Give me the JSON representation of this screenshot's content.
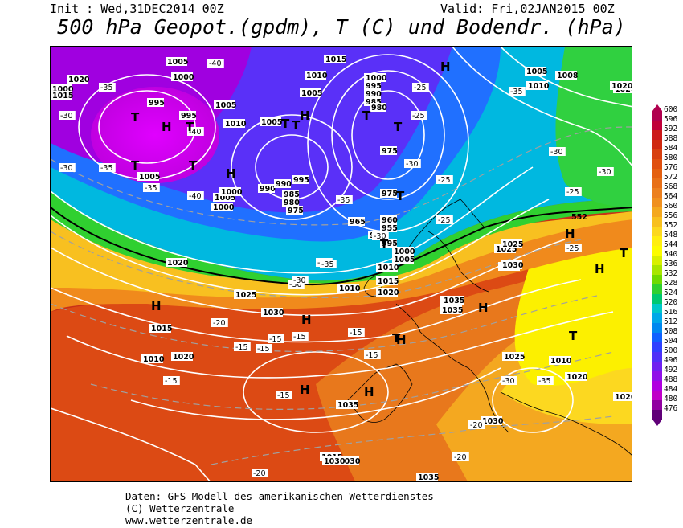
{
  "header": {
    "init": "Init : Wed,31DEC2014 00Z",
    "valid": "Valid: Fri,02JAN2015 00Z",
    "title": "500 hPa Geopot.(gpdm), T (C) und Bodendr. (hPa)"
  },
  "footer": {
    "line1": "Daten: GFS-Modell des amerikanischen Wetterdienstes",
    "line2": "(C) Wetterzentrale",
    "line3": "www.wetterzentrale.de"
  },
  "legend": {
    "levels": [
      "600",
      "596",
      "592",
      "588",
      "584",
      "580",
      "576",
      "572",
      "568",
      "564",
      "560",
      "556",
      "552",
      "548",
      "544",
      "540",
      "536",
      "532",
      "528",
      "524",
      "520",
      "516",
      "512",
      "508",
      "504",
      "500",
      "496",
      "492",
      "488",
      "484",
      "480",
      "476"
    ],
    "colors": [
      "#b0004f",
      "#c0003a",
      "#cc1a1a",
      "#d02a10",
      "#d84010",
      "#e05010",
      "#e46010",
      "#e87018",
      "#ec8020",
      "#f09020",
      "#f4a820",
      "#f8c020",
      "#fcd820",
      "#ffee10",
      "#fcfc00",
      "#d8f000",
      "#a8e600",
      "#70da00",
      "#30d030",
      "#00c870",
      "#00c8c8",
      "#00a8e8",
      "#0088f0",
      "#1060ff",
      "#3040ff",
      "#5030f8",
      "#7020f0",
      "#9010e8",
      "#b000e0",
      "#c000c8",
      "#9000a0",
      "#600078"
    ]
  },
  "map_labels": {
    "pressure": [
      "1020",
      "1005",
      "1000",
      "995",
      "995",
      "1005",
      "1010",
      "1015",
      "1000",
      "995",
      "990",
      "985",
      "980",
      "975",
      "975",
      "1005",
      "1010",
      "1020",
      "1005",
      "1000",
      "990",
      "985",
      "980",
      "975",
      "965",
      "960",
      "955",
      "990",
      "995",
      "1000",
      "1005",
      "1010",
      "1015",
      "1020",
      "1025",
      "1030",
      "1035",
      "1035",
      "1030",
      "1025",
      "1020",
      "1015",
      "1010",
      "1005",
      "1000",
      "995",
      "990",
      "1010",
      "1020",
      "1025",
      "1030",
      "1035",
      "1020",
      "1025",
      "1030",
      "1035",
      "1030",
      "1020",
      "1015",
      "1010",
      "1005",
      "1000",
      "1008",
      "1005",
      "1010",
      "1020",
      "1015",
      "1035",
      "1030",
      "1025"
    ],
    "temperature": [
      "-40",
      "-40",
      "-35",
      "-30",
      "-35",
      "-40",
      "-35",
      "-30",
      "-35",
      "-30",
      "-25",
      "-30",
      "-35",
      "-30",
      "-25",
      "-25",
      "-30",
      "-35",
      "-25",
      "-35",
      "-30",
      "-25",
      "-20",
      "-15",
      "-15",
      "-15",
      "-15",
      "-15",
      "-15",
      "-15",
      "-20",
      "-15",
      "-25",
      "-20",
      "-30",
      "-20",
      "-25",
      "-30",
      "-35"
    ],
    "symbols": [
      "T",
      "T",
      "H",
      "T",
      "T",
      "H",
      "T",
      "T",
      "T",
      "T",
      "H",
      "T",
      "H",
      "T",
      "H",
      "T",
      "H",
      "H",
      "H",
      "H",
      "H",
      "T",
      "T",
      "H",
      "H"
    ],
    "isoline_552": "552"
  }
}
